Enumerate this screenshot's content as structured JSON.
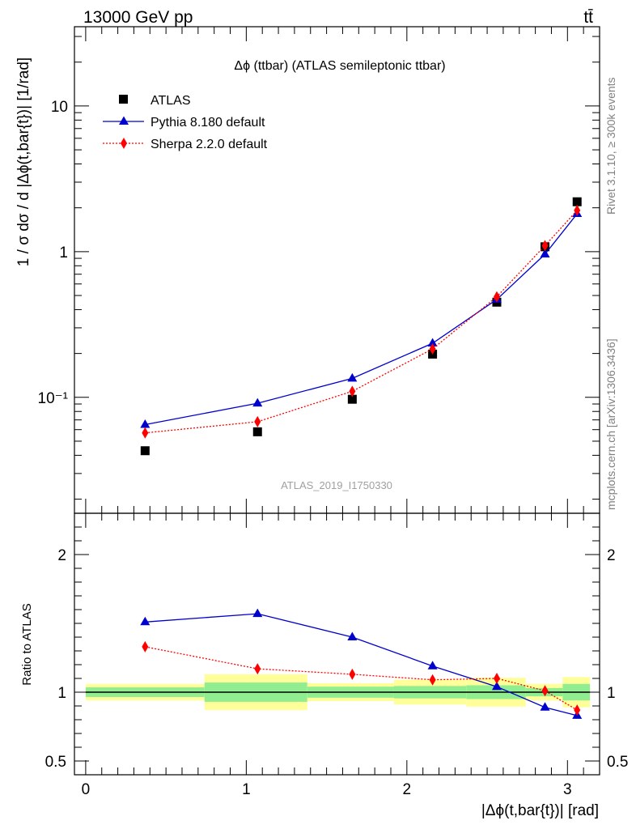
{
  "header": {
    "left": "13000 GeV pp",
    "right": "tt̄"
  },
  "side_labels": {
    "rivet": "Rivet 3.1.10, ≥ 300k events",
    "mcplots": "mcplots.cern.ch [arXiv:1306.3436]"
  },
  "colors": {
    "data": "#000000",
    "pythia": "#0000cc",
    "sherpa": "#ff0000",
    "band_inner": "#90ee90",
    "band_outer": "#ffff99"
  },
  "chart_data": [
    {
      "type": "scatter",
      "title": "Δϕ (ttbar) (ATLAS semileptonic ttbar)",
      "watermark": "ATLAS_2019_I1750330",
      "ylabel": "1 / σ dσ / d |Δϕ(t,bar{t})| [1/rad]",
      "yscale": "log",
      "ylim": [
        0.016,
        35
      ],
      "xlim": [
        -0.07,
        3.2
      ],
      "y_tick_labels": [
        "10⁻¹",
        "1",
        "10"
      ],
      "legend_position": "top-left",
      "x": [
        0.37,
        1.07,
        1.66,
        2.16,
        2.56,
        2.86,
        3.06
      ],
      "series": [
        {
          "name": "ATLAS",
          "marker": "square",
          "values": [
            0.043,
            0.058,
            0.097,
            0.198,
            0.45,
            1.08,
            2.2
          ]
        },
        {
          "name": "Pythia 8.180 default",
          "marker": "triangle",
          "line": "solid",
          "values": [
            0.065,
            0.091,
            0.135,
            0.235,
            0.47,
            0.96,
            1.82
          ]
        },
        {
          "name": "Sherpa 2.2.0 default",
          "marker": "diamond",
          "line": "dotted",
          "values": [
            0.057,
            0.068,
            0.11,
            0.215,
            0.49,
            1.1,
            1.92
          ]
        }
      ]
    },
    {
      "type": "line",
      "ylabel": "Ratio to ATLAS",
      "xlabel": "|Δϕ(t,bar{t})| [rad]",
      "ylim": [
        0.4,
        2.3
      ],
      "y_ticks": [
        0.5,
        1,
        2
      ],
      "y_tick_labels": [
        "0.5",
        "1",
        "2"
      ],
      "x_ticks": [
        0,
        1,
        2,
        3
      ],
      "x_tick_labels": [
        "0",
        "1",
        "2",
        "3"
      ],
      "x": [
        0.37,
        1.07,
        1.66,
        2.16,
        2.56,
        2.86,
        3.06
      ],
      "series": [
        {
          "name": "Pythia 8.180 default",
          "values": [
            1.51,
            1.57,
            1.4,
            1.19,
            1.04,
            0.89,
            0.83
          ]
        },
        {
          "name": "Sherpa 2.2.0 default",
          "values": [
            1.33,
            1.17,
            1.13,
            1.09,
            1.1,
            1.01,
            0.87
          ]
        }
      ],
      "bands": [
        {
          "x0": 0.0,
          "x1": 0.74,
          "inner": [
            0.965,
            1.035
          ],
          "outer": [
            0.94,
            1.06
          ]
        },
        {
          "x0": 0.74,
          "x1": 1.38,
          "inner": [
            0.93,
            1.07
          ],
          "outer": [
            0.87,
            1.13
          ]
        },
        {
          "x0": 1.38,
          "x1": 1.92,
          "inner": [
            0.96,
            1.04
          ],
          "outer": [
            0.935,
            1.065
          ]
        },
        {
          "x0": 1.92,
          "x1": 2.37,
          "inner": [
            0.955,
            1.045
          ],
          "outer": [
            0.91,
            1.09
          ]
        },
        {
          "x0": 2.37,
          "x1": 2.74,
          "inner": [
            0.95,
            1.05
          ],
          "outer": [
            0.895,
            1.105
          ]
        },
        {
          "x0": 2.74,
          "x1": 2.97,
          "inner": [
            0.97,
            1.03
          ],
          "outer": [
            0.94,
            1.06
          ]
        },
        {
          "x0": 2.97,
          "x1": 3.14,
          "inner": [
            0.94,
            1.06
          ],
          "outer": [
            0.89,
            1.11
          ]
        }
      ]
    }
  ]
}
